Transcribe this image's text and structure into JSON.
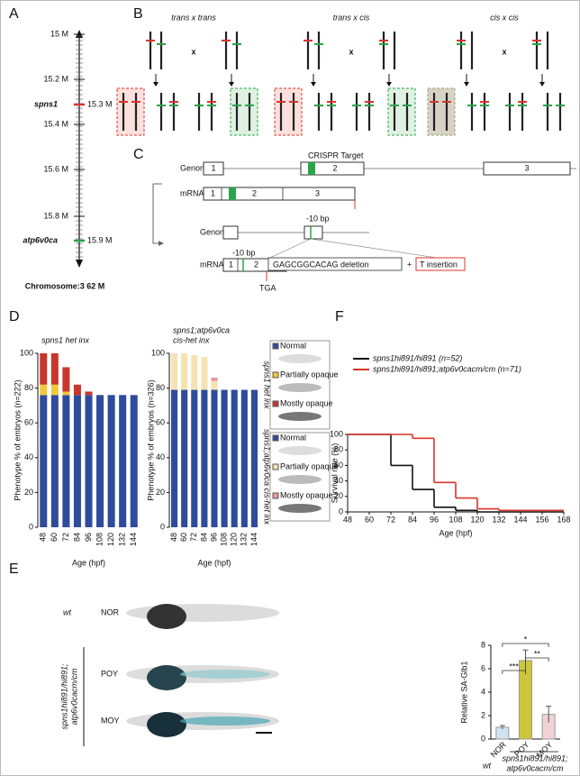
{
  "panel_labels": [
    "A",
    "B",
    "C",
    "D",
    "E",
    "F"
  ],
  "panel_a": {
    "ticks": [
      "15 M",
      "15.2 M",
      "15.4 M",
      "15.6 M",
      "15.8 M"
    ],
    "genes": [
      {
        "name": "spns1",
        "position": "15.3 M"
      },
      {
        "name": "atp6v0ca",
        "position": "15.9 M"
      }
    ],
    "caption": "Chromosome:3  62 M"
  },
  "panel_b": {
    "crosses": [
      "trans x trans",
      "trans x cis",
      "cis x cis"
    ],
    "symbol": "x"
  },
  "panel_c": {
    "genome": "Genome",
    "mrna": "mRNA",
    "target": "CRISPR Target",
    "exons": [
      "1",
      "2",
      "3"
    ],
    "deletion_size": "-10 bp",
    "deletion": "GAGCGGCACAG deletion",
    "plus": "+",
    "insertion": "T insertion",
    "stop": "TGA"
  },
  "panel_d_legend": {
    "side_labels": [
      "spns1 het inx",
      "spns1;atp6v0ca cis-het inx"
    ]
  },
  "panel_e": {
    "wt": "wt",
    "groups": [
      "NOR",
      "POY",
      "MOY"
    ],
    "genotype": [
      "spns1hi891/hi891;",
      "atp6v0cacm/cm"
    ]
  },
  "chart_data": [
    {
      "type": "bar",
      "stacked": true,
      "title": [
        "spns1 het inx"
      ],
      "ylabel": "Phenotype % of embryos (n=222)",
      "xlabel": "Age (hpf)",
      "categories": [
        "48",
        "60",
        "72",
        "84",
        "96",
        "108",
        "120",
        "132",
        "144"
      ],
      "ylim": [
        0,
        100
      ],
      "yticks": [
        0,
        20,
        40,
        60,
        80,
        100
      ],
      "series": [
        {
          "name": "Normal",
          "color": "#2f4b9b",
          "values": [
            76,
            76,
            76,
            76,
            76,
            76,
            76,
            76,
            76
          ]
        },
        {
          "name": "Partially opaque",
          "color": "#f2c83a",
          "values": [
            6,
            6,
            2,
            0,
            0,
            0,
            0,
            0,
            0
          ]
        },
        {
          "name": "Mostly opaque",
          "color": "#c9362c",
          "values": [
            18,
            18,
            14,
            6,
            2,
            0,
            0,
            0,
            0
          ]
        }
      ]
    },
    {
      "type": "bar",
      "stacked": true,
      "title": [
        "spns1;atp6v0ca",
        "cis-het inx"
      ],
      "ylabel": "Phenotype % of embryos (n=326)",
      "xlabel": "Age (hpf)",
      "categories": [
        "48",
        "60",
        "72",
        "84",
        "96",
        "108",
        "120",
        "132",
        "144"
      ],
      "ylim": [
        0,
        100
      ],
      "yticks": [
        0,
        20,
        40,
        60,
        80,
        100
      ],
      "series": [
        {
          "name": "Normal",
          "color": "#2f4b9b",
          "values": [
            79,
            79,
            79,
            79,
            79,
            79,
            79,
            79,
            79
          ]
        },
        {
          "name": "Partially opaque",
          "color": "#f5e4b2",
          "values": [
            21,
            21,
            20,
            19,
            5,
            0,
            0,
            0,
            0
          ]
        },
        {
          "name": "Mostly opaque",
          "color": "#e89a9a",
          "values": [
            0,
            0,
            0,
            0,
            2,
            0,
            0,
            0,
            0
          ]
        }
      ]
    },
    {
      "type": "line",
      "step": true,
      "ylabel": "Survival rate (%)",
      "xlabel": "Age (hpf)",
      "xlim": [
        48,
        168
      ],
      "xticks": [
        48,
        60,
        72,
        84,
        96,
        108,
        120,
        132,
        144,
        156,
        168
      ],
      "ylim": [
        0,
        100
      ],
      "yticks": [
        0,
        20,
        40,
        60,
        80,
        100
      ],
      "legend": "top",
      "series": [
        {
          "name": "spns1hi891/hi891 (n=52)",
          "color": "#111111",
          "x": [
            48,
            72,
            84,
            96,
            108,
            120,
            168
          ],
          "values": [
            100,
            60,
            29,
            6,
            2,
            0,
            0
          ]
        },
        {
          "name": "spns1hi891/hi891;atp6v0cacm/cm (n=71)",
          "color": "#d9352a",
          "x": [
            48,
            72,
            84,
            96,
            108,
            120,
            132,
            168
          ],
          "values": [
            100,
            100,
            95,
            38,
            18,
            4,
            2,
            2
          ]
        }
      ]
    },
    {
      "type": "bar",
      "ylabel": "Relative SA-Glb1",
      "categories": [
        "NOR",
        "POY",
        "MOY"
      ],
      "values": [
        1.0,
        6.7,
        2.1
      ],
      "errors": [
        0.15,
        0.9,
        0.7
      ],
      "colors": [
        "#cfe3f1",
        "#cdc63a",
        "#f1d3d6"
      ],
      "ylim": [
        0,
        8
      ],
      "yticks": [
        0,
        2,
        4,
        6,
        8
      ],
      "annotations": [
        "***",
        "**",
        "*"
      ],
      "group_labels": [
        "wt",
        "spns1hi891/hi891;",
        "atp6v0cacm/cm"
      ]
    }
  ]
}
